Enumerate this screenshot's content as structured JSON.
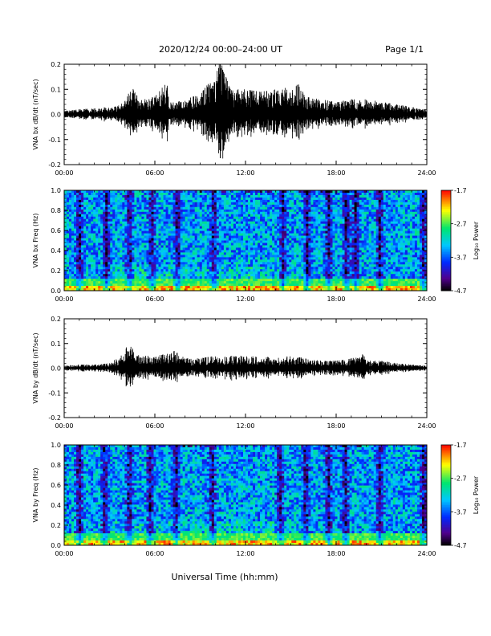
{
  "header": {
    "title": "2020/12/24  00:00–24:00 UT",
    "page": "Page 1/1"
  },
  "xaxis_label": "Universal Time (hh:mm)",
  "colors": {
    "trace": "#000000",
    "colorbar": [
      "#000000",
      "#4b0082",
      "#0000ff",
      "#00ccff",
      "#00ff66",
      "#ffff00",
      "#ff0000"
    ]
  },
  "chart_data": [
    {
      "type": "line",
      "name": "VNA bx dB/dt",
      "ylabel": "VNA bx dB/dt (nT/sec)",
      "x_unit": "hours UT",
      "xlim": [
        0,
        24
      ],
      "ylim": [
        -0.2,
        0.2
      ],
      "x_ticks": [
        "00:00",
        "06:00",
        "12:00",
        "18:00",
        "24:00"
      ],
      "y_ticks": [
        "0.2",
        "0.1",
        "0.0",
        "-0.1",
        "-0.2"
      ],
      "envelope": {
        "x": [
          0,
          1,
          2,
          3,
          4,
          4.5,
          5,
          6,
          6.8,
          7,
          7.5,
          8,
          9,
          9.5,
          10,
          10.3,
          11,
          12,
          13,
          14,
          15,
          15.5,
          16,
          17,
          18,
          19,
          20,
          21,
          22,
          23,
          24
        ],
        "y": [
          0.015,
          0.02,
          0.025,
          0.03,
          0.05,
          0.12,
          0.06,
          0.07,
          0.13,
          0.05,
          0.05,
          0.06,
          0.08,
          0.12,
          0.14,
          0.22,
          0.1,
          0.1,
          0.09,
          0.1,
          0.11,
          0.12,
          0.07,
          0.06,
          0.05,
          0.06,
          0.06,
          0.05,
          0.04,
          0.03,
          0.02
        ]
      }
    },
    {
      "type": "heatmap",
      "name": "VNA bx Freq",
      "ylabel": "VNA bx Freq (Hz)",
      "xlim": [
        0,
        24
      ],
      "ylim": [
        0,
        1.0
      ],
      "x_ticks": [
        "00:00",
        "06:00",
        "12:00",
        "18:00",
        "24:00"
      ],
      "y_ticks": [
        "1.0",
        "0.8",
        "0.6",
        "0.4",
        "0.2",
        "0.0"
      ],
      "colorbar": {
        "label": "Log₁₀ Power",
        "range": [
          -4.7,
          -1.7
        ],
        "ticks": [
          "-1.7",
          "-2.7",
          "-3.7",
          "-4.7"
        ]
      },
      "dark_bands_hours": [
        1.0,
        2.8,
        4.3,
        5.8,
        7.5,
        9.9,
        14.5,
        16.1,
        17.5,
        18.7,
        19.3,
        20.9,
        23.8
      ]
    },
    {
      "type": "line",
      "name": "VNA by dB/dt",
      "ylabel": "VNA by dB/dt (nT/sec)",
      "x_unit": "hours UT",
      "xlim": [
        0,
        24
      ],
      "ylim": [
        -0.2,
        0.2
      ],
      "x_ticks": [
        "00:00",
        "06:00",
        "12:00",
        "18:00",
        "24:00"
      ],
      "y_ticks": [
        "0.2",
        "0.1",
        "0.0",
        "-0.1",
        "-0.2"
      ],
      "envelope": {
        "x": [
          0,
          1,
          2,
          3,
          3.5,
          4,
          4.2,
          5,
          6,
          7,
          7.3,
          8,
          9,
          10,
          11,
          12,
          13,
          14,
          15,
          16,
          17,
          18,
          19,
          19.8,
          20,
          21,
          22,
          23,
          24
        ],
        "y": [
          0.01,
          0.015,
          0.015,
          0.02,
          0.04,
          0.06,
          0.1,
          0.05,
          0.05,
          0.06,
          0.07,
          0.04,
          0.04,
          0.05,
          0.05,
          0.05,
          0.05,
          0.04,
          0.05,
          0.04,
          0.03,
          0.03,
          0.04,
          0.06,
          0.03,
          0.03,
          0.02,
          0.015,
          0.01
        ]
      }
    },
    {
      "type": "heatmap",
      "name": "VNA by Freq",
      "ylabel": "VNA by Freq (Hz)",
      "xlim": [
        0,
        24
      ],
      "ylim": [
        0,
        1.0
      ],
      "x_ticks": [
        "00:00",
        "06:00",
        "12:00",
        "18:00",
        "24:00"
      ],
      "y_ticks": [
        "1.0",
        "0.8",
        "0.6",
        "0.4",
        "0.2",
        "0.0"
      ],
      "colorbar": {
        "label": "Log₁₀ Power",
        "range": [
          -4.7,
          -1.7
        ],
        "ticks": [
          "-1.7",
          "-2.7",
          "-3.7",
          "-4.7"
        ]
      },
      "dark_bands_hours": [
        1.0,
        2.7,
        4.3,
        5.7,
        7.4,
        9.8,
        14.3,
        16.0,
        17.5,
        18.6,
        20.9,
        23.8
      ]
    }
  ]
}
